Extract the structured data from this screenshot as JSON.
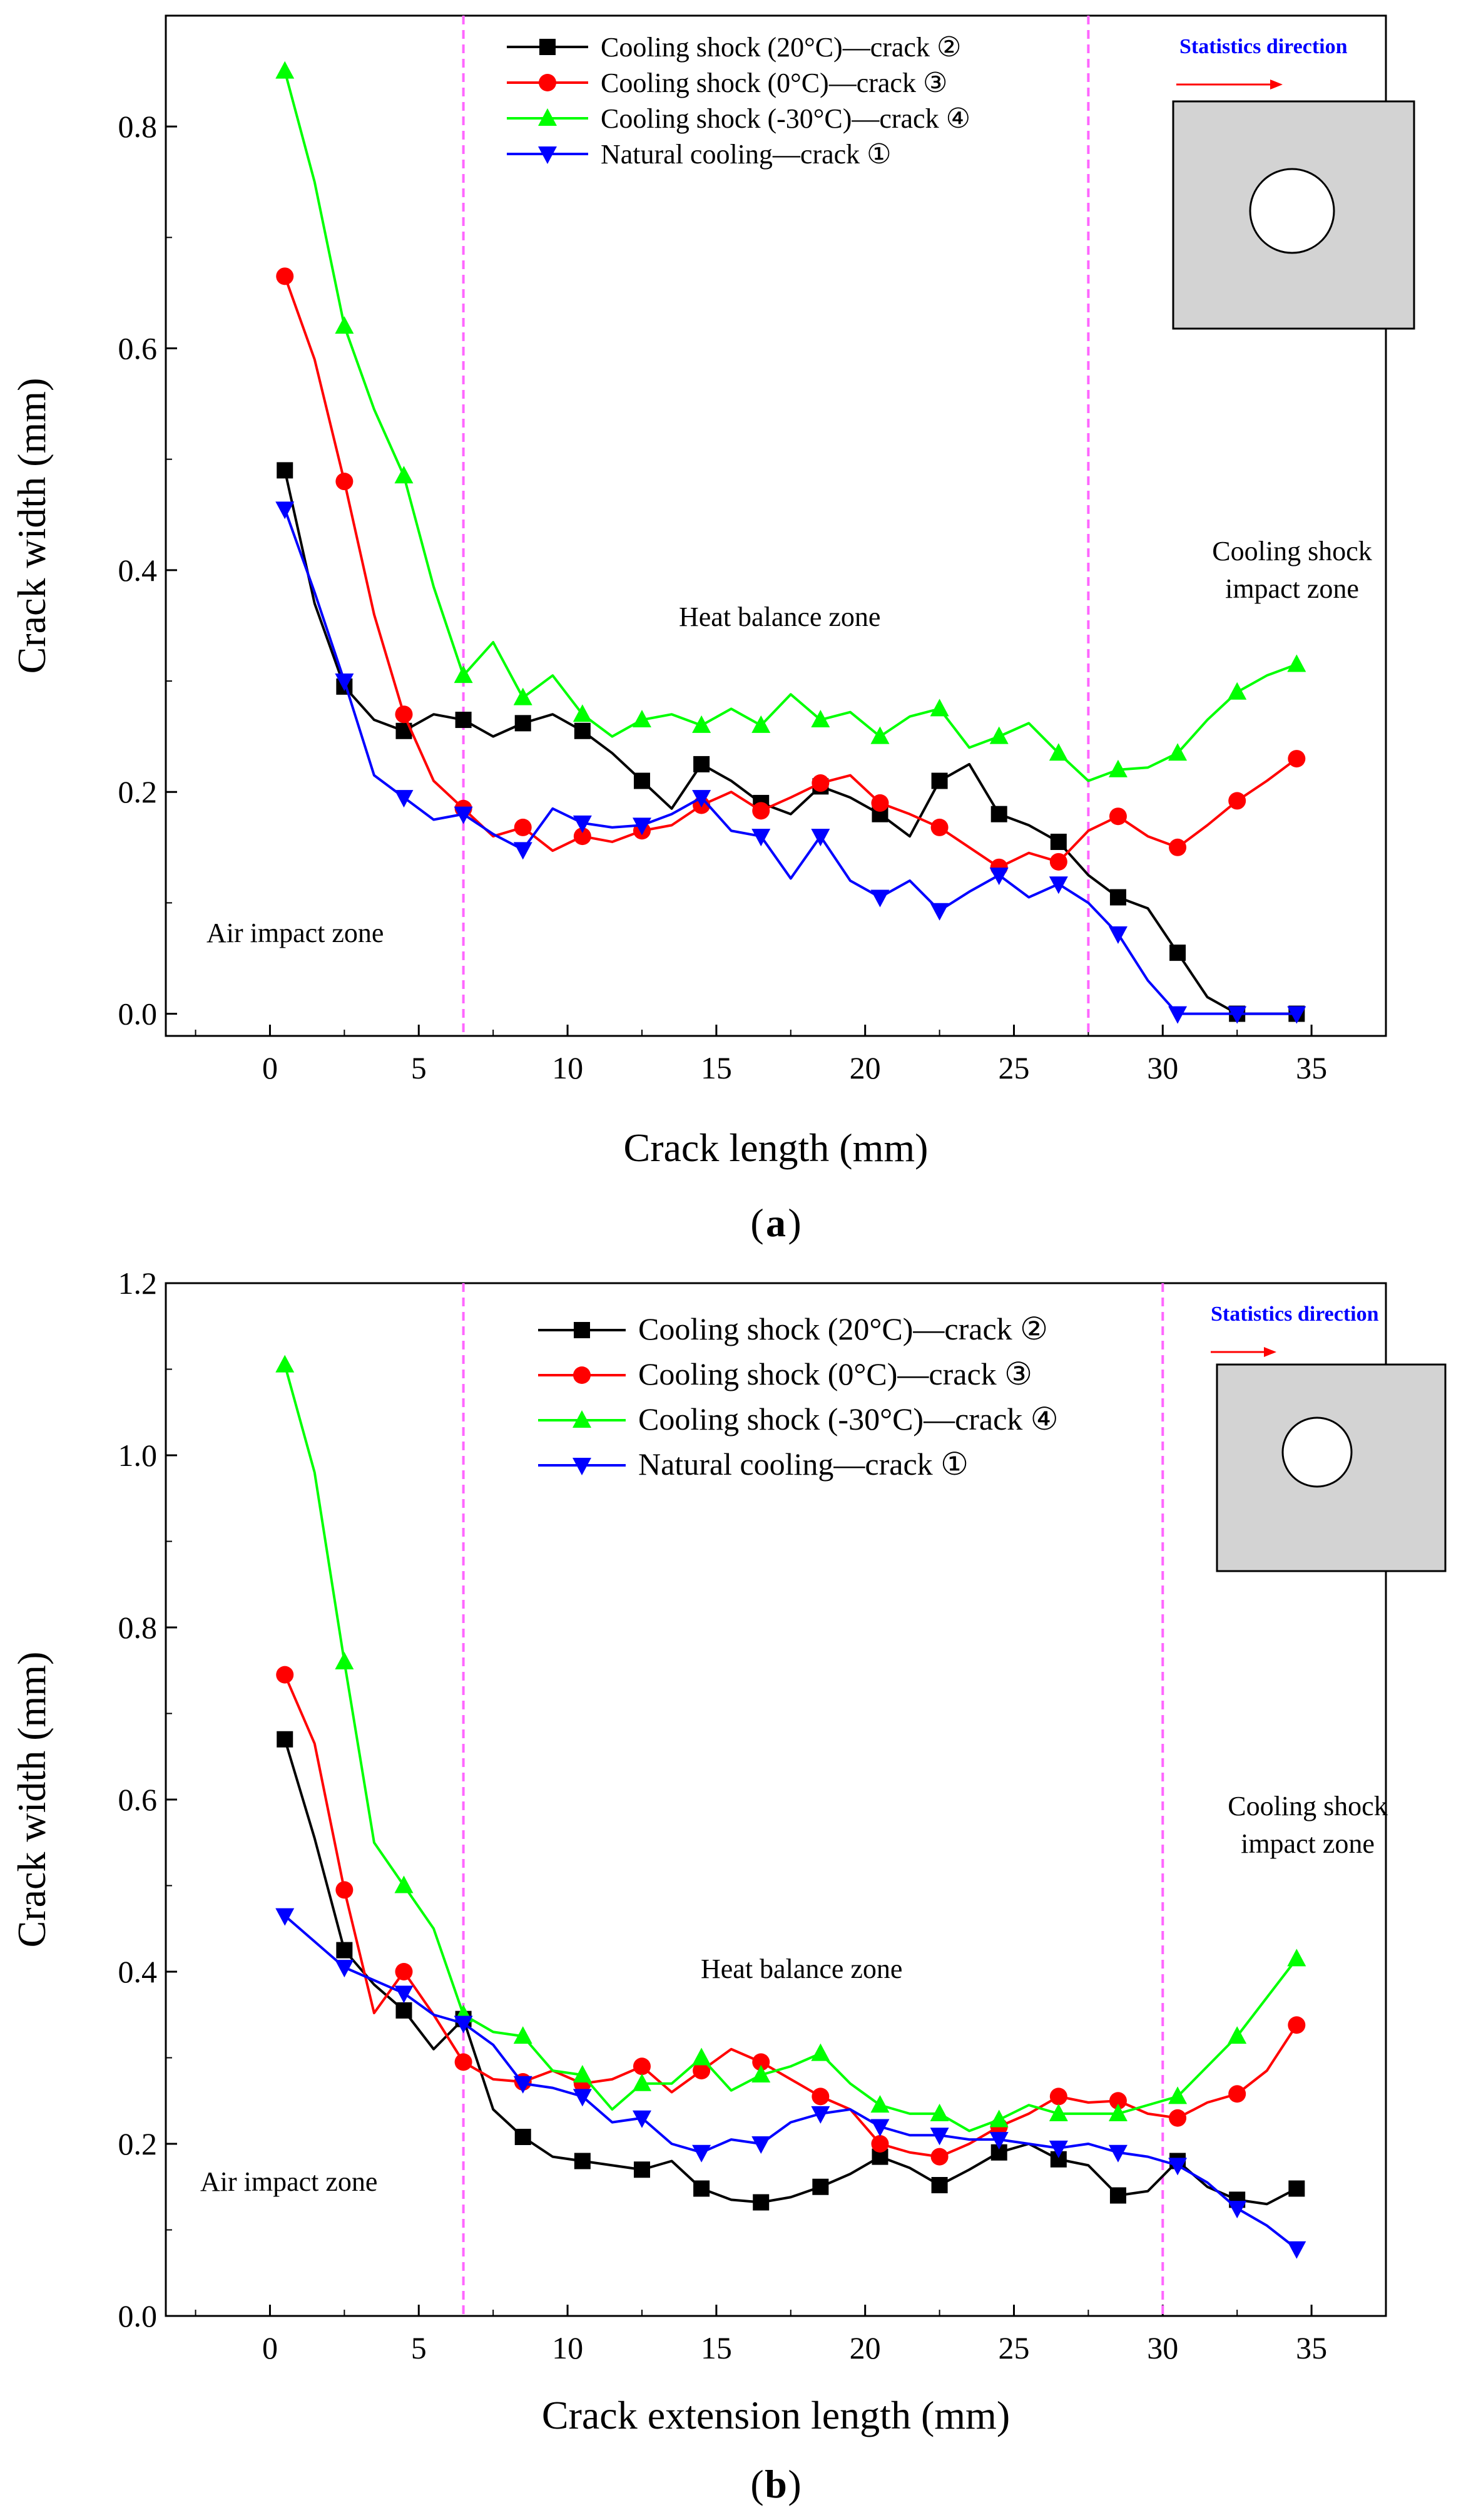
{
  "figure": {
    "panels": [
      "a",
      "b"
    ],
    "symbols": {
      "2": "②",
      "3": "③",
      "4": "④",
      "1": "①"
    }
  },
  "chart_data": [
    {
      "panel_label": "a",
      "type": "line",
      "title": "",
      "xlabel": "Crack length (mm)",
      "ylabel": "Crack width (mm)",
      "xlim": [
        -3.5,
        37.5
      ],
      "ylim": [
        -0.02,
        0.9
      ],
      "xticks": [
        0,
        5,
        10,
        15,
        20,
        25,
        30,
        35
      ],
      "xtick_labels": [
        "0",
        "5",
        "10",
        "15",
        "20",
        "25",
        "30",
        "35"
      ],
      "yticks": [
        0.0,
        0.2,
        0.4,
        0.6,
        0.8
      ],
      "ytick_labels": [
        "0.0",
        "0.2",
        "0.4",
        "0.6",
        "0.8"
      ],
      "grid": false,
      "legend_position": "top-center",
      "zone_boundaries": [
        6.5,
        27.5
      ],
      "annotations": {
        "left_zone": "Air impact zone",
        "middle_zone": "Heat balance zone",
        "right_zone_line1": "Cooling shock",
        "right_zone_line2": "impact zone",
        "statistics_direction": "Statistics direction"
      },
      "series": [
        {
          "name": "Cooling shock  (20°C)—crack ②",
          "color": "#000000",
          "marker": "square",
          "x": [
            0.5,
            1.5,
            2.5,
            3.5,
            4.5,
            5.5,
            6.5,
            7.5,
            8.5,
            9.5,
            10.5,
            11.5,
            12.5,
            13.5,
            14.5,
            15.5,
            16.5,
            17.5,
            18.5,
            19.5,
            20.5,
            21.5,
            22.5,
            23.5,
            24.5,
            25.5,
            26.5,
            27.5,
            28.5,
            29.5,
            30.5,
            31.5,
            32.5,
            33.5,
            34.5
          ],
          "values": [
            0.49,
            0.37,
            0.295,
            0.265,
            0.255,
            0.27,
            0.265,
            0.25,
            0.262,
            0.27,
            0.255,
            0.235,
            0.21,
            0.185,
            0.225,
            0.21,
            0.19,
            0.18,
            0.205,
            0.195,
            0.18,
            0.16,
            0.21,
            0.225,
            0.18,
            0.17,
            0.155,
            0.125,
            0.105,
            0.095,
            0.055,
            0.015,
            0.0,
            0.0,
            0.0
          ]
        },
        {
          "name": "Cooling shock  (0°C)—crack ③",
          "color": "#ff0000",
          "marker": "circle",
          "x": [
            0.5,
            1.5,
            2.5,
            3.5,
            4.5,
            5.5,
            6.5,
            7.5,
            8.5,
            9.5,
            10.5,
            11.5,
            12.5,
            13.5,
            14.5,
            15.5,
            16.5,
            17.5,
            18.5,
            19.5,
            20.5,
            21.5,
            22.5,
            23.5,
            24.5,
            25.5,
            26.5,
            27.5,
            28.5,
            29.5,
            30.5,
            31.5,
            32.5,
            33.5,
            34.5
          ],
          "values": [
            0.665,
            0.59,
            0.48,
            0.36,
            0.27,
            0.21,
            0.185,
            0.16,
            0.168,
            0.147,
            0.16,
            0.155,
            0.165,
            0.17,
            0.188,
            0.2,
            0.183,
            0.195,
            0.208,
            0.215,
            0.19,
            0.18,
            0.168,
            0.15,
            0.132,
            0.145,
            0.137,
            0.165,
            0.178,
            0.16,
            0.15,
            0.17,
            0.192,
            0.21,
            0.23
          ]
        },
        {
          "name": "Cooling shock  (-30°C)—crack ④",
          "color": "#00ff00",
          "marker": "triangle-up",
          "x": [
            0.5,
            1.5,
            2.5,
            3.5,
            4.5,
            5.5,
            6.5,
            7.5,
            8.5,
            9.5,
            10.5,
            11.5,
            12.5,
            13.5,
            14.5,
            15.5,
            16.5,
            17.5,
            18.5,
            19.5,
            20.5,
            21.5,
            22.5,
            23.5,
            24.5,
            25.5,
            26.5,
            27.5,
            28.5,
            29.5,
            30.5,
            31.5,
            32.5,
            33.5,
            34.5
          ],
          "values": [
            0.85,
            0.75,
            0.62,
            0.545,
            0.485,
            0.385,
            0.305,
            0.335,
            0.285,
            0.305,
            0.27,
            0.25,
            0.265,
            0.27,
            0.26,
            0.275,
            0.26,
            0.288,
            0.265,
            0.272,
            0.25,
            0.268,
            0.275,
            0.24,
            0.25,
            0.262,
            0.235,
            0.21,
            0.22,
            0.222,
            0.235,
            0.265,
            0.29,
            0.305,
            0.315
          ]
        },
        {
          "name": "Natural cooling—crack ①",
          "color": "#0000ff",
          "marker": "triangle-down",
          "x": [
            0.5,
            1.5,
            2.5,
            3.5,
            4.5,
            5.5,
            6.5,
            7.5,
            8.5,
            9.5,
            10.5,
            11.5,
            12.5,
            13.5,
            14.5,
            15.5,
            16.5,
            17.5,
            18.5,
            19.5,
            20.5,
            21.5,
            22.5,
            23.5,
            24.5,
            25.5,
            26.5,
            27.5,
            28.5,
            29.5,
            30.5,
            31.5,
            32.5,
            33.5,
            34.5
          ],
          "values": [
            0.455,
            0.38,
            0.3,
            0.215,
            0.195,
            0.175,
            0.18,
            0.162,
            0.148,
            0.185,
            0.172,
            0.168,
            0.17,
            0.18,
            0.195,
            0.165,
            0.16,
            0.122,
            0.16,
            0.12,
            0.105,
            0.12,
            0.093,
            0.11,
            0.125,
            0.105,
            0.117,
            0.1,
            0.072,
            0.03,
            0.0,
            0.0,
            0.0,
            0.0,
            0.0
          ]
        }
      ]
    },
    {
      "panel_label": "b",
      "type": "line",
      "title": "",
      "xlabel": "Crack extension length (mm)",
      "ylabel": "Crack width (mm)",
      "xlim": [
        -3.5,
        37.5
      ],
      "ylim": [
        0.0,
        1.2
      ],
      "xticks": [
        0,
        5,
        10,
        15,
        20,
        25,
        30,
        35
      ],
      "xtick_labels": [
        "0",
        "5",
        "10",
        "15",
        "20",
        "25",
        "30",
        "35"
      ],
      "yticks": [
        0.0,
        0.2,
        0.4,
        0.6,
        0.8,
        1.0,
        1.2
      ],
      "ytick_labels": [
        "0.0",
        "0.2",
        "0.4",
        "0.6",
        "0.8",
        "1.0",
        "1.2"
      ],
      "grid": false,
      "legend_position": "top-center",
      "zone_boundaries": [
        6.5,
        30.0
      ],
      "annotations": {
        "left_zone": "Air impact zone",
        "middle_zone": "Heat balance zone",
        "right_zone_line1": "Cooling shock",
        "right_zone_line2": "impact zone",
        "statistics_direction": "Statistics direction"
      },
      "series": [
        {
          "name": "Cooling shock (20°C)—crack ②",
          "color": "#000000",
          "marker": "square",
          "x": [
            0.5,
            1.5,
            2.5,
            3.5,
            4.5,
            5.5,
            6.5,
            7.5,
            8.5,
            9.5,
            10.5,
            11.5,
            12.5,
            13.5,
            14.5,
            15.5,
            16.5,
            17.5,
            18.5,
            19.5,
            20.5,
            21.5,
            22.5,
            23.5,
            24.5,
            25.5,
            26.5,
            27.5,
            28.5,
            29.5,
            30.5,
            31.5,
            32.5,
            33.5,
            34.5
          ],
          "values": [
            0.67,
            0.555,
            0.425,
            0.385,
            0.355,
            0.31,
            0.345,
            0.24,
            0.208,
            0.185,
            0.18,
            0.175,
            0.17,
            0.18,
            0.148,
            0.135,
            0.132,
            0.138,
            0.15,
            0.165,
            0.185,
            0.172,
            0.152,
            0.17,
            0.19,
            0.2,
            0.182,
            0.175,
            0.14,
            0.145,
            0.18,
            0.15,
            0.135,
            0.13,
            0.148
          ]
        },
        {
          "name": "Cooling shock (0°C)—crack ③",
          "color": "#ff0000",
          "marker": "circle",
          "x": [
            0.5,
            1.5,
            2.5,
            3.5,
            4.5,
            5.5,
            6.5,
            7.5,
            8.5,
            9.5,
            10.5,
            11.5,
            12.5,
            13.5,
            14.5,
            15.5,
            16.5,
            17.5,
            18.5,
            19.5,
            20.5,
            21.5,
            22.5,
            23.5,
            24.5,
            25.5,
            26.5,
            27.5,
            28.5,
            29.5,
            30.5,
            31.5,
            32.5,
            33.5,
            34.5
          ],
          "values": [
            0.745,
            0.665,
            0.495,
            0.352,
            0.4,
            0.35,
            0.295,
            0.275,
            0.272,
            0.285,
            0.27,
            0.275,
            0.29,
            0.26,
            0.285,
            0.31,
            0.295,
            0.275,
            0.255,
            0.24,
            0.2,
            0.19,
            0.185,
            0.2,
            0.22,
            0.235,
            0.255,
            0.248,
            0.25,
            0.235,
            0.23,
            0.248,
            0.258,
            0.285,
            0.338
          ]
        },
        {
          "name": "Cooling shock (-30°C)—crack ④",
          "color": "#00ff00",
          "marker": "triangle-up",
          "x": [
            0.5,
            1.5,
            2.5,
            3.5,
            4.5,
            5.5,
            6.5,
            7.5,
            8.5,
            9.5,
            10.5,
            11.5,
            12.5,
            13.5,
            14.5,
            15.5,
            16.5,
            17.5,
            18.5,
            19.5,
            20.5,
            21.5,
            22.5,
            23.5,
            24.5,
            25.5,
            26.5,
            27.5,
            28.5,
            29.5,
            30.5,
            31.5,
            32.5,
            33.5,
            34.5
          ],
          "values": [
            1.105,
            0.98,
            0.76,
            0.55,
            0.5,
            0.45,
            0.35,
            0.33,
            0.325,
            0.285,
            0.28,
            0.24,
            0.27,
            0.27,
            0.3,
            0.262,
            0.28,
            0.29,
            0.305,
            0.27,
            0.245,
            0.235,
            0.235,
            0.215,
            0.228,
            0.245,
            0.235,
            0.235,
            0.235,
            0.245,
            0.255,
            0.29,
            0.325,
            0.37,
            0.415
          ]
        },
        {
          "name": "Natural cooling—crack ①",
          "color": "#0000ff",
          "marker": "triangle-down",
          "x": [
            0.5,
            1.5,
            2.5,
            3.5,
            4.5,
            5.5,
            6.5,
            7.5,
            8.5,
            9.5,
            10.5,
            11.5,
            12.5,
            13.5,
            14.5,
            15.5,
            16.5,
            17.5,
            18.5,
            19.5,
            20.5,
            21.5,
            22.5,
            23.5,
            24.5,
            25.5,
            26.5,
            27.5,
            28.5,
            29.5,
            30.5,
            31.5,
            32.5,
            33.5,
            34.5
          ],
          "values": [
            0.465,
            0.435,
            0.405,
            0.39,
            0.375,
            0.35,
            0.34,
            0.315,
            0.27,
            0.265,
            0.255,
            0.225,
            0.23,
            0.2,
            0.19,
            0.205,
            0.2,
            0.225,
            0.235,
            0.24,
            0.22,
            0.21,
            0.21,
            0.205,
            0.205,
            0.2,
            0.195,
            0.2,
            0.19,
            0.185,
            0.175,
            0.155,
            0.125,
            0.105,
            0.078
          ]
        }
      ]
    }
  ]
}
